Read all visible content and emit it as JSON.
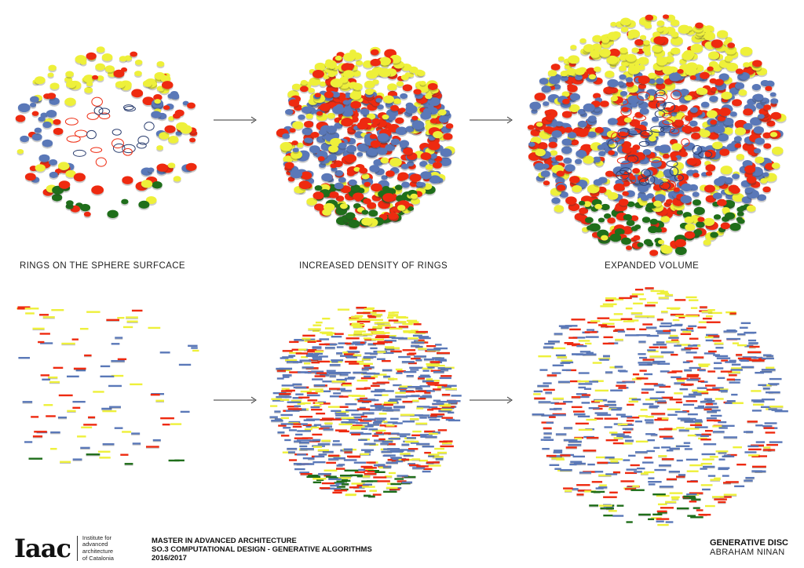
{
  "captions": {
    "left": "RINGS ON THE SPHERE SURFCACE",
    "middle": "INCREASED DENSITY OF RINGS",
    "right": "EXPANDED VOLUME"
  },
  "footer": {
    "logo": "Iaac",
    "institute": [
      "Institute for",
      "advanced",
      "architecture",
      "of Catalonia"
    ],
    "program_lines": [
      "MASTER IN ADVANCED ARCHITECTURE",
      "SO.3 COMPUTATIONAL DESIGN - GENERATIVE ALGORITHMS",
      "2016/2017"
    ],
    "project_title": "GENERATIVE DISC",
    "author": "ABRAHAM NINAN"
  },
  "colors": {
    "yellow": "#eef03a",
    "red": "#ee2a10",
    "blue": "#5a78b8",
    "green": "#1f6e1a",
    "dark_ring": "#2c3f70"
  }
}
